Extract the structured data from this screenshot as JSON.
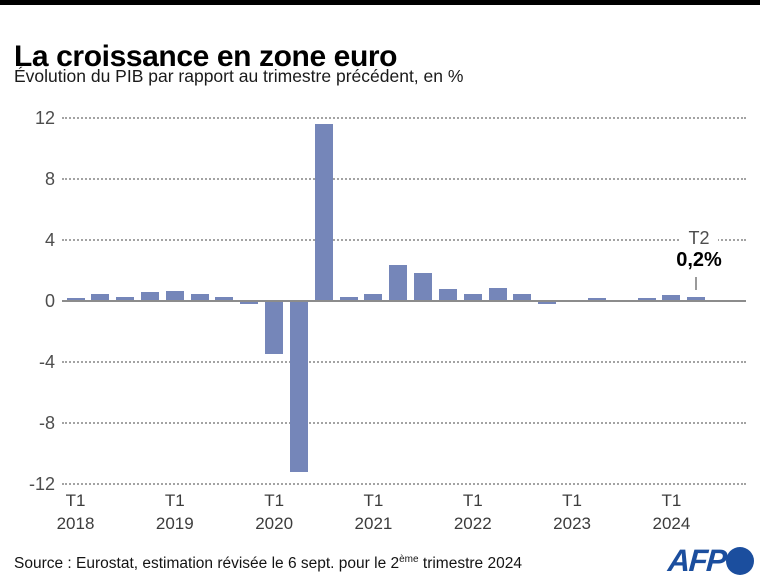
{
  "header": {
    "title": "La croissance en zone euro",
    "subtitle": "Évolution du PIB par rapport au trimestre précédent, en %"
  },
  "chart_data": {
    "type": "bar",
    "title": "La croissance en zone euro",
    "subtitle": "Évolution du PIB par rapport au trimestre précédent, en %",
    "ylim": [
      -12,
      12
    ],
    "yticks": [
      12,
      8,
      4,
      0,
      -4,
      -8,
      -12
    ],
    "grid": "horizontal-dotted",
    "legend": "none",
    "bar_color": "#7586b9",
    "quarters": [
      "T1 2018",
      "T2 2018",
      "T3 2018",
      "T4 2018",
      "T1 2019",
      "T2 2019",
      "T3 2019",
      "T4 2019",
      "T1 2020",
      "T2 2020",
      "T3 2020",
      "T4 2020",
      "T1 2021",
      "T2 2021",
      "T3 2021",
      "T4 2021",
      "T1 2022",
      "T2 2022",
      "T3 2022",
      "T4 2022",
      "T1 2023",
      "T2 2023",
      "T3 2023",
      "T4 2023",
      "T1 2024",
      "T2 2024"
    ],
    "values": [
      0.1,
      0.4,
      0.2,
      0.5,
      0.6,
      0.4,
      0.2,
      -0.1,
      -3.4,
      -11.2,
      11.6,
      0.2,
      0.4,
      2.3,
      1.8,
      0.7,
      0.4,
      0.8,
      0.4,
      -0.1,
      0,
      0.1,
      0,
      0.1,
      0.3,
      0.2
    ],
    "xticks": [
      {
        "top": "T1",
        "bottom": "2018"
      },
      {
        "top": "T1",
        "bottom": "2019"
      },
      {
        "top": "T1",
        "bottom": "2020"
      },
      {
        "top": "T1",
        "bottom": "2021"
      },
      {
        "top": "T1",
        "bottom": "2022"
      },
      {
        "top": "T1",
        "bottom": "2023"
      },
      {
        "top": "T1",
        "bottom": "2024"
      }
    ],
    "annotation": {
      "label": "T2",
      "value": "0,2%"
    }
  },
  "footer": {
    "source_prefix": "Source : Eurostat, estimation révisée le 6 sept. pour le 2",
    "source_sup": "ème",
    "source_suffix": " trimestre 2024",
    "afp": "AFP"
  },
  "colors": {
    "bar": "#7586b9",
    "afp_blue": "#1b4e9e",
    "top_bar": "#000000"
  }
}
